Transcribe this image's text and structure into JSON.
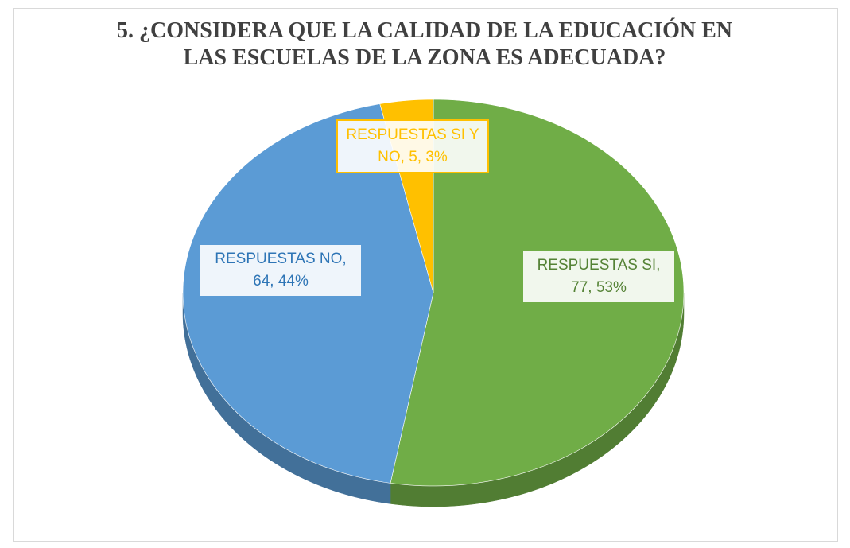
{
  "chart_data": {
    "type": "pie3d",
    "title": "5. ¿CONSIDERA QUE LA CALIDAD DE LA EDUCACIÓN EN LAS ESCUELAS  DE LA ZONA ES ADECUADA?",
    "categories": [
      "RESPUESTAS SI",
      "RESPUESTAS NO",
      "RESPUESTAS SI Y NO"
    ],
    "values": [
      77,
      64,
      5
    ],
    "value_labels": [
      "77, 53%",
      "64, 44%",
      "5, 3%"
    ],
    "colors": [
      "#70ad47",
      "#5b9bd5",
      "#ffc000"
    ]
  }
}
